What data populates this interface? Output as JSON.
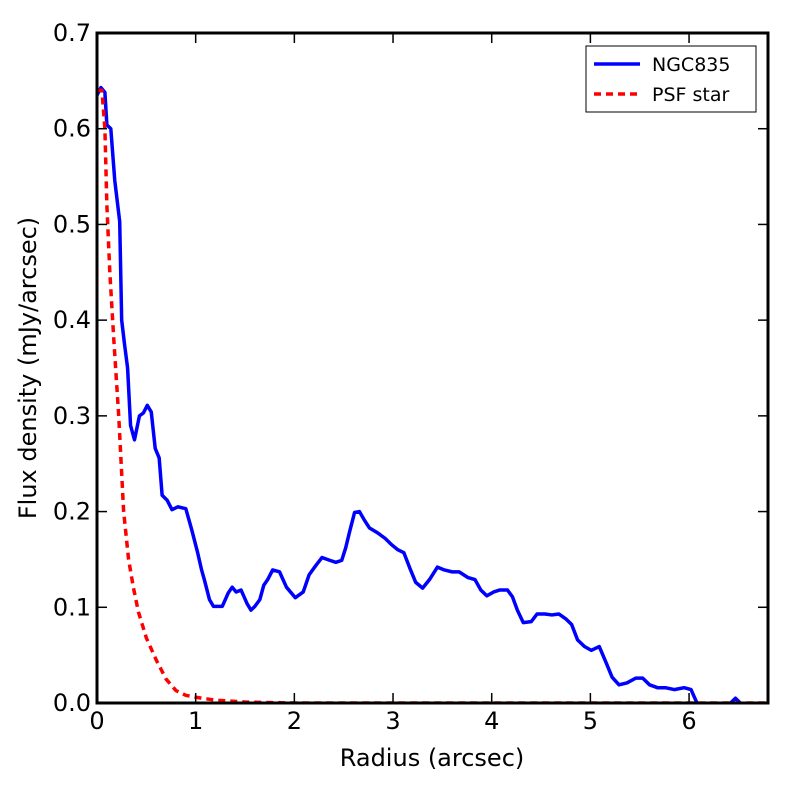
{
  "chart_data": {
    "type": "line",
    "xlabel": "Radius (arcsec)",
    "ylabel": "Flux density (mJy/arcsec)",
    "xlim": [
      0,
      6.8
    ],
    "ylim": [
      0,
      0.7
    ],
    "xticks": [
      0,
      1,
      2,
      3,
      4,
      5,
      6
    ],
    "yticks": [
      {
        "value": 0,
        "label": "0.0"
      },
      0.1,
      0.2,
      0.3,
      0.4,
      0.5,
      0.6,
      0.7
    ],
    "legend": "upper right",
    "series": [
      {
        "name": "NGC835",
        "color": "#0000ff",
        "style": "solid",
        "x": [
          0,
          0.04,
          0.08,
          0.1,
          0.14,
          0.18,
          0.23,
          0.25,
          0.28,
          0.31,
          0.34,
          0.38,
          0.43,
          0.47,
          0.51,
          0.55,
          0.59,
          0.63,
          0.66,
          0.71,
          0.76,
          0.82,
          0.9,
          0.96,
          1.02,
          1.06,
          1.09,
          1.14,
          1.18,
          1.27,
          1.33,
          1.37,
          1.41,
          1.46,
          1.52,
          1.56,
          1.6,
          1.65,
          1.69,
          1.73,
          1.78,
          1.85,
          1.92,
          2.01,
          2.09,
          2.15,
          2.22,
          2.28,
          2.36,
          2.42,
          2.48,
          2.52,
          2.56,
          2.61,
          2.66,
          2.71,
          2.76,
          2.84,
          2.92,
          2.99,
          3.05,
          3.11,
          3.17,
          3.23,
          3.3,
          3.37,
          3.45,
          3.52,
          3.6,
          3.67,
          3.76,
          3.83,
          3.89,
          3.95,
          4.02,
          4.08,
          4.16,
          4.21,
          4.26,
          4.32,
          4.4,
          4.46,
          4.54,
          4.61,
          4.68,
          4.75,
          4.81,
          4.87,
          4.94,
          5.01,
          5.09,
          5.16,
          5.22,
          5.29,
          5.37,
          5.46,
          5.53,
          5.6,
          5.68,
          5.76,
          5.85,
          5.95,
          6.02,
          6.08,
          6.25,
          6.42,
          6.47,
          6.52
        ],
        "values": [
          0.635,
          0.643,
          0.638,
          0.604,
          0.6,
          0.546,
          0.503,
          0.4,
          0.374,
          0.35,
          0.29,
          0.275,
          0.3,
          0.303,
          0.311,
          0.304,
          0.266,
          0.256,
          0.217,
          0.212,
          0.202,
          0.205,
          0.203,
          0.181,
          0.157,
          0.139,
          0.128,
          0.108,
          0.101,
          0.101,
          0.115,
          0.121,
          0.116,
          0.118,
          0.104,
          0.097,
          0.101,
          0.108,
          0.123,
          0.129,
          0.139,
          0.137,
          0.121,
          0.11,
          0.116,
          0.134,
          0.144,
          0.152,
          0.149,
          0.147,
          0.149,
          0.162,
          0.179,
          0.199,
          0.2,
          0.191,
          0.183,
          0.178,
          0.172,
          0.165,
          0.16,
          0.157,
          0.141,
          0.126,
          0.12,
          0.129,
          0.142,
          0.139,
          0.137,
          0.137,
          0.131,
          0.129,
          0.118,
          0.112,
          0.116,
          0.118,
          0.118,
          0.111,
          0.097,
          0.084,
          0.085,
          0.093,
          0.093,
          0.092,
          0.093,
          0.088,
          0.082,
          0.066,
          0.059,
          0.055,
          0.059,
          0.042,
          0.027,
          0.019,
          0.021,
          0.026,
          0.026,
          0.019,
          0.016,
          0.016,
          0.014,
          0.016,
          0.014,
          0,
          null,
          0,
          0.005,
          0
        ]
      },
      {
        "name": "PSF star",
        "color": "#ff0000",
        "style": "dashed",
        "x": [
          0,
          0.05,
          0.08,
          0.1,
          0.13,
          0.17,
          0.22,
          0.27,
          0.32,
          0.37,
          0.42,
          0.5,
          0.6,
          0.7,
          0.8,
          0.9,
          1.0,
          1.2,
          1.5,
          2,
          6.8
        ],
        "values": [
          0.64,
          0.64,
          0.6,
          0.52,
          0.45,
          0.38,
          0.3,
          0.2,
          0.15,
          0.12,
          0.095,
          0.068,
          0.045,
          0.025,
          0.013,
          0.008,
          0.006,
          0.003,
          0.001,
          0,
          0
        ]
      }
    ]
  }
}
